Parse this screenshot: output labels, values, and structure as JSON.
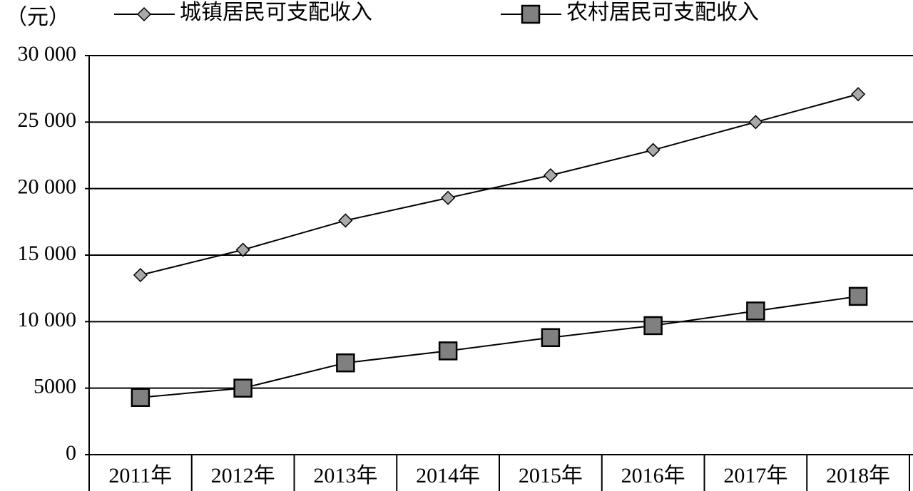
{
  "chart_data": {
    "type": "line",
    "unit_label": "（元）",
    "categories": [
      "2011年",
      "2012年",
      "2013年",
      "2014年",
      "2015年",
      "2016年",
      "2017年",
      "2018年"
    ],
    "series": [
      {
        "name": "城镇居民可支配收入",
        "color": "#a9a9a9",
        "marker": "diamond",
        "values": [
          13500,
          15400,
          17600,
          19300,
          21000,
          22900,
          25000,
          27100
        ]
      },
      {
        "name": "农村居民可支配收入",
        "color": "#808080",
        "marker": "square",
        "values": [
          4300,
          5000,
          6900,
          7800,
          8800,
          9700,
          10800,
          11900
        ]
      }
    ],
    "ylim": [
      0,
      30000
    ],
    "yticks": [
      0,
      5000,
      {
        "value": 10000,
        "label": "10 000"
      },
      {
        "value": 15000,
        "label": "15 000"
      },
      {
        "value": 20000,
        "label": "20 000"
      },
      {
        "value": 25000,
        "label": "25 000"
      },
      {
        "value": 30000,
        "label": "30 000"
      }
    ],
    "grid": true
  }
}
